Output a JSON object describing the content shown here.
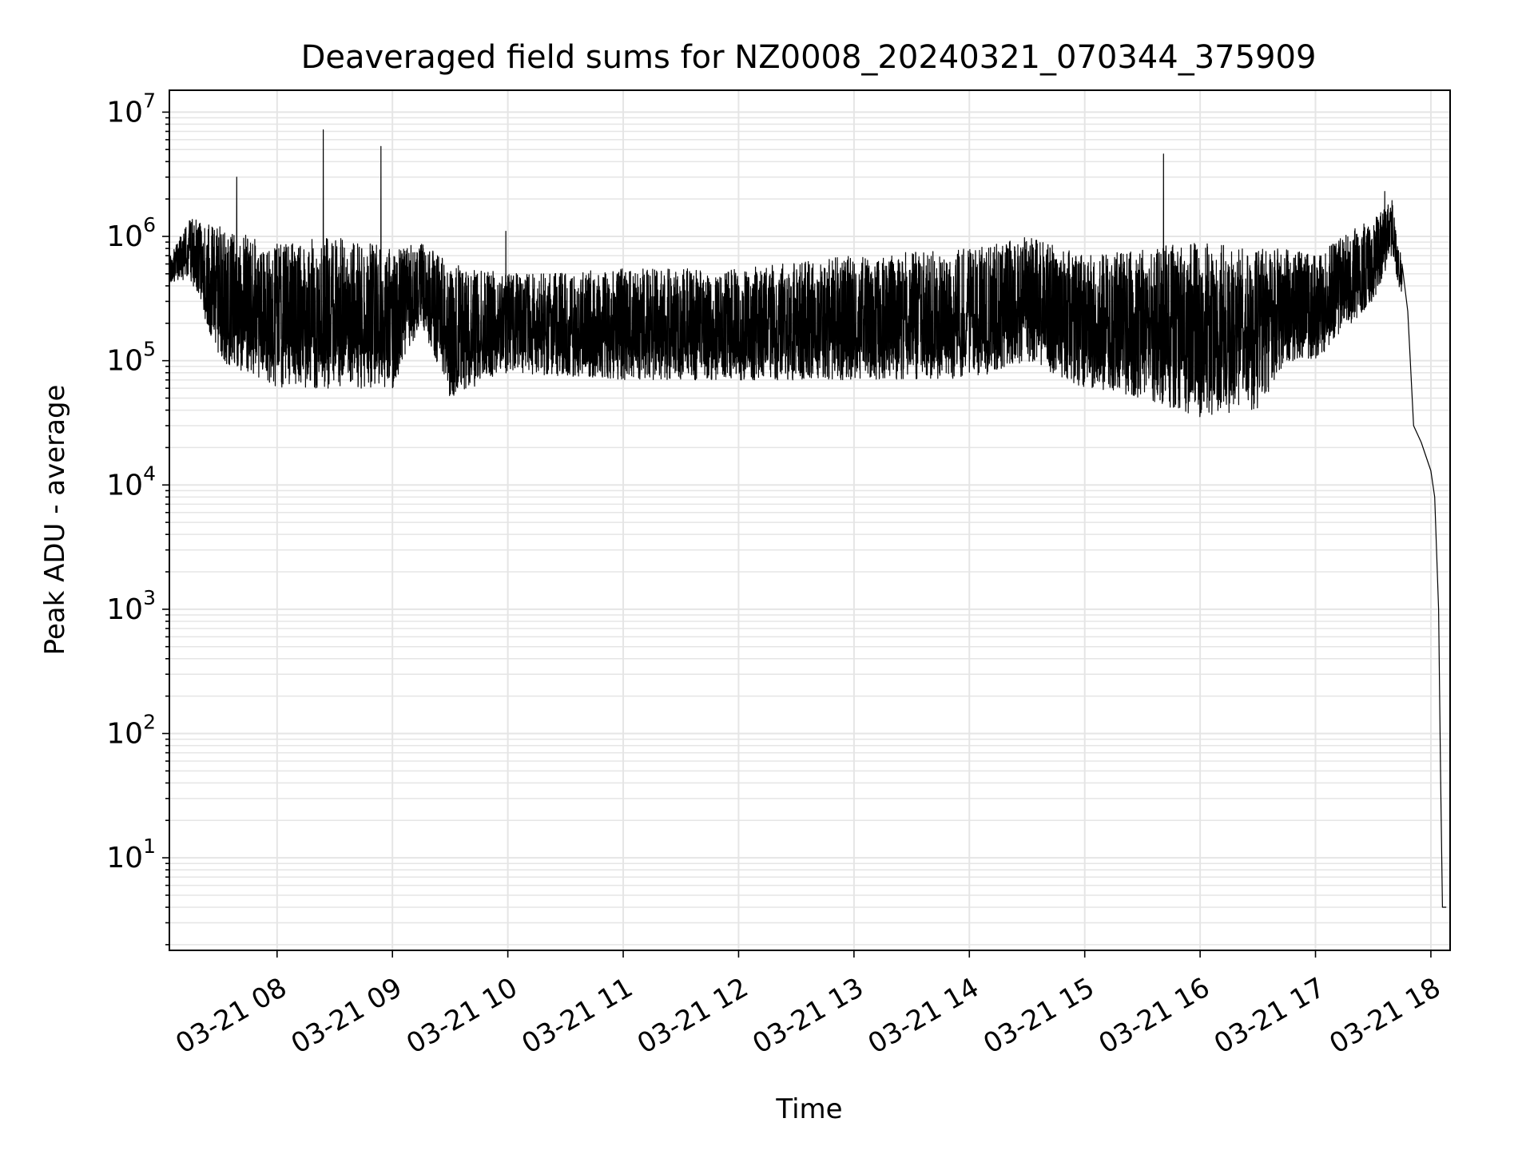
{
  "chart_data": {
    "type": "line",
    "title": "Deaveraged field sums for NZ0008_20240321_070344_375909",
    "xlabel": "Time",
    "ylabel": "Peak ADU - average",
    "yscale": "log",
    "ylim": [
      1.8,
      15000000
    ],
    "xlim": [
      "03-21 07:04",
      "03-21 18:10"
    ],
    "xticks": [
      "03-21 08",
      "03-21 09",
      "03-21 10",
      "03-21 11",
      "03-21 12",
      "03-21 13",
      "03-21 14",
      "03-21 15",
      "03-21 16",
      "03-21 17",
      "03-21 18"
    ],
    "yticks": [
      {
        "base": "10",
        "exp": "1"
      },
      {
        "base": "10",
        "exp": "2"
      },
      {
        "base": "10",
        "exp": "3"
      },
      {
        "base": "10",
        "exp": "4"
      },
      {
        "base": "10",
        "exp": "5"
      },
      {
        "base": "10",
        "exp": "6"
      },
      {
        "base": "10",
        "exp": "7"
      }
    ],
    "grid": true,
    "line_color": "#000000",
    "grid_color": "#e5e5e5",
    "envelope": [
      {
        "t": "07:04",
        "low": 400000,
        "high": 700000
      },
      {
        "t": "07:15",
        "low": 450000,
        "high": 1400000
      },
      {
        "t": "07:30",
        "low": 100000,
        "high": 1200000
      },
      {
        "t": "08:00",
        "low": 60000,
        "high": 900000
      },
      {
        "t": "08:30",
        "low": 60000,
        "high": 1000000
      },
      {
        "t": "09:00",
        "low": 60000,
        "high": 800000
      },
      {
        "t": "09:15",
        "low": 200000,
        "high": 900000
      },
      {
        "t": "09:30",
        "low": 50000,
        "high": 600000
      },
      {
        "t": "10:00",
        "low": 80000,
        "high": 500000
      },
      {
        "t": "11:00",
        "low": 70000,
        "high": 550000
      },
      {
        "t": "12:00",
        "low": 70000,
        "high": 550000
      },
      {
        "t": "13:00",
        "low": 70000,
        "high": 700000
      },
      {
        "t": "14:00",
        "low": 70000,
        "high": 800000
      },
      {
        "t": "14:30",
        "low": 100000,
        "high": 1000000
      },
      {
        "t": "15:00",
        "low": 60000,
        "high": 700000
      },
      {
        "t": "15:30",
        "low": 50000,
        "high": 800000
      },
      {
        "t": "16:00",
        "low": 35000,
        "high": 900000
      },
      {
        "t": "16:30",
        "low": 40000,
        "high": 800000
      },
      {
        "t": "16:45",
        "low": 100000,
        "high": 800000
      },
      {
        "t": "17:00",
        "low": 100000,
        "high": 700000
      },
      {
        "t": "17:30",
        "low": 300000,
        "high": 1500000
      },
      {
        "t": "17:40",
        "low": 700000,
        "high": 2000000
      },
      {
        "t": "17:45",
        "low": 300000,
        "high": 600000
      }
    ],
    "spikes": [
      {
        "t": "07:39",
        "value": 3000000
      },
      {
        "t": "08:24",
        "value": 7200000
      },
      {
        "t": "08:54",
        "value": 5300000
      },
      {
        "t": "09:59",
        "value": 1100000
      },
      {
        "t": "15:41",
        "value": 4600000
      },
      {
        "t": "17:36",
        "value": 2300000
      }
    ],
    "tail": [
      {
        "t": "17:45",
        "value": 600000
      },
      {
        "t": "17:48",
        "value": 250000
      },
      {
        "t": "17:51",
        "value": 30000
      },
      {
        "t": "17:55",
        "value": 22000
      },
      {
        "t": "18:00",
        "value": 13000
      },
      {
        "t": "18:02",
        "value": 8000
      },
      {
        "t": "18:04",
        "value": 1000
      },
      {
        "t": "18:05",
        "value": 50
      },
      {
        "t": "18:06",
        "value": 4
      },
      {
        "t": "18:08",
        "value": 4
      }
    ]
  }
}
